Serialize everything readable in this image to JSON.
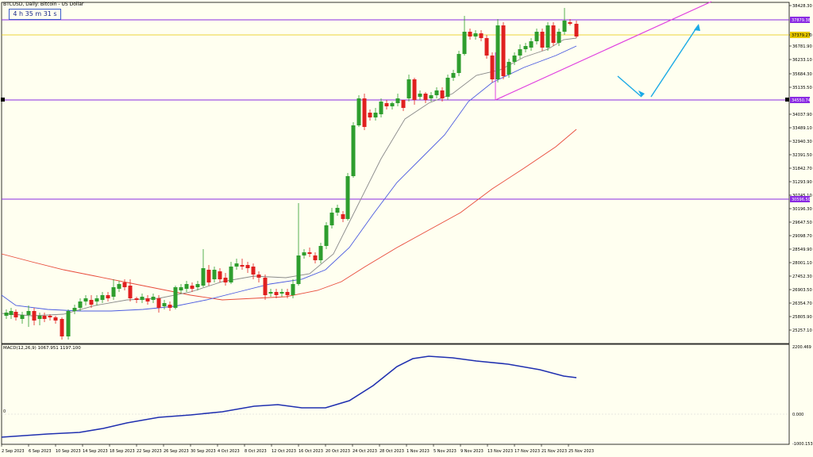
{
  "header": {
    "symbol_text": "BTCUSD, Daily:  Bitcoin - US Dollar",
    "timer": "4 h 35 m 31 s"
  },
  "macd": {
    "label": "MACD(12,26,9) 1067.951 1197.100",
    "zero_left": "0",
    "scale": [
      "2200.469",
      "0.000",
      "-1000.153"
    ]
  },
  "colors": {
    "background": "#fffff0",
    "bull": "#2e9e2e",
    "bear": "#e02020",
    "ma_fast": "#8a8a8a",
    "ma_mid": "#4a5ae0",
    "ma_slow": "#e84a3a",
    "level_line": "#8a2be2",
    "trend_line": "#e040e0",
    "arrow": "#1aaae6",
    "macd_line": "#2030b0",
    "yellow_line": "#e8c800"
  },
  "price_scale": [
    "38428.30",
    "37330.70",
    "36781.90",
    "36233.10",
    "35684.30",
    "35135.50",
    "34037.90",
    "33489.10",
    "32940.30",
    "32391.50",
    "31842.70",
    "31293.90",
    "30745.10",
    "30196.30",
    "29647.50",
    "29098.70",
    "28549.90",
    "28001.10",
    "27452.30",
    "26903.50",
    "26354.70",
    "25805.90",
    "25257.10"
  ],
  "price_tags": [
    {
      "label": "37879.38",
      "bg": "#8a2be2"
    },
    {
      "label": "37379.27",
      "bg": "#e8c800"
    },
    {
      "label": "34550.74",
      "bg": "#8a2be2"
    },
    {
      "label": "30596.50",
      "bg": "#8a2be2"
    }
  ],
  "date_labels": [
    "2 Sep 2023",
    "6 Sep 2023",
    "10 Sep 2023",
    "14 Sep 2023",
    "18 Sep 2023",
    "22 Sep 2023",
    "26 Sep 2023",
    "30 Sep 2023",
    "4 Oct 2023",
    "8 Oct 2023",
    "12 Oct 2023",
    "16 Oct 2023",
    "20 Oct 2023",
    "24 Oct 2023",
    "28 Oct 2023",
    "1 Nov 2023",
    "5 Nov 2023",
    "9 Nov 2023",
    "13 Nov 2023",
    "17 Nov 2023",
    "21 Nov 2023",
    "25 Nov 2023"
  ]
}
